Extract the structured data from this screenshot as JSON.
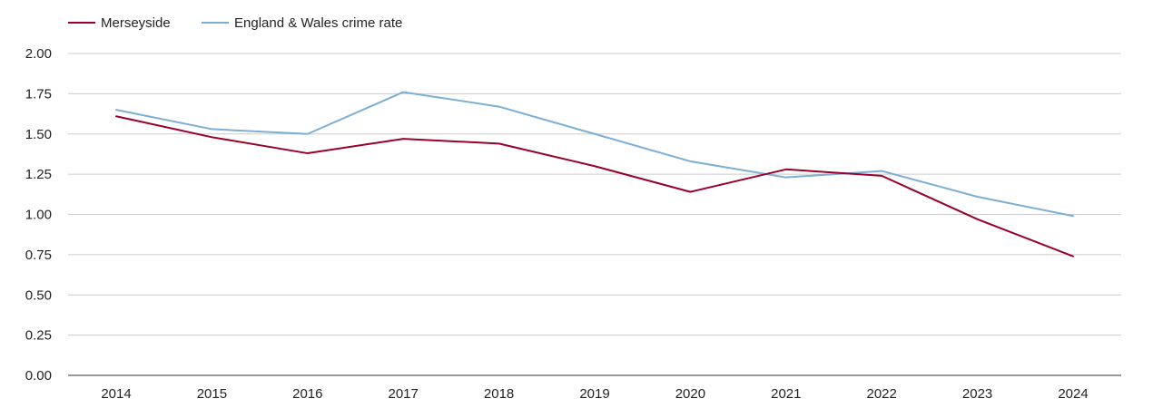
{
  "chart_data": {
    "type": "line",
    "title": "",
    "xlabel": "",
    "ylabel": "",
    "categories": [
      "2014",
      "2015",
      "2016",
      "2017",
      "2018",
      "2019",
      "2020",
      "2021",
      "2022",
      "2023",
      "2024"
    ],
    "ylim": [
      0,
      2
    ],
    "yticks": [
      "0.00",
      "0.25",
      "0.50",
      "0.75",
      "1.00",
      "1.25",
      "1.50",
      "1.75",
      "2.00"
    ],
    "grid": true,
    "legend_position": "top-left",
    "series": [
      {
        "name": "Merseyside",
        "color": "#99002b",
        "values": [
          1.61,
          1.48,
          1.38,
          1.47,
          1.44,
          1.3,
          1.14,
          1.28,
          1.24,
          0.97,
          0.74
        ]
      },
      {
        "name": "England & Wales crime rate",
        "color": "#7bafd4",
        "values": [
          1.65,
          1.53,
          1.5,
          1.76,
          1.67,
          1.5,
          1.33,
          1.23,
          1.27,
          1.11,
          0.99
        ]
      }
    ]
  }
}
